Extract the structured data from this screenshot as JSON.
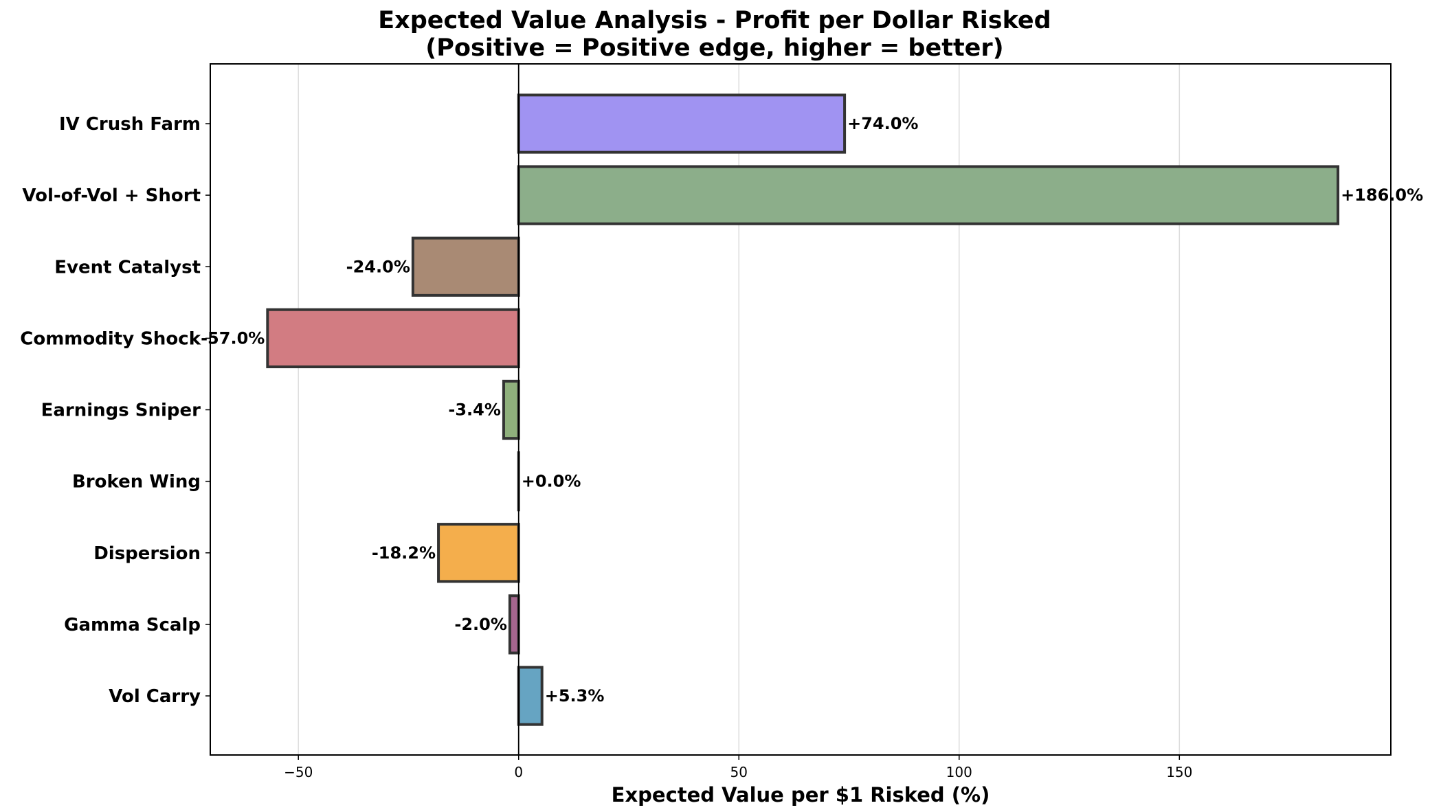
{
  "chart_data": {
    "type": "bar",
    "orientation": "horizontal",
    "title": "Expected Value Analysis - Profit per Dollar Risked",
    "subtitle": "(Positive = Positive edge, higher = better)",
    "xlabel": "Expected Value per $1 Risked (%)",
    "ylabel": "",
    "xlim": [
      -70,
      198
    ],
    "xticks": [
      -50,
      0,
      50,
      100,
      150
    ],
    "xtick_labels": [
      "−50",
      "0",
      "50",
      "100",
      "150"
    ],
    "grid": "x",
    "categories": [
      "IV Crush Farm",
      "Vol-of-Vol + Short",
      "Event Catalyst",
      "Commodity Shock",
      "Earnings Sniper",
      "Broken Wing",
      "Dispersion",
      "Gamma Scalp",
      "Vol Carry"
    ],
    "values": [
      74.0,
      186.0,
      -24.0,
      -57.0,
      -3.4,
      0.0,
      -18.2,
      -2.0,
      5.3
    ],
    "data_labels": [
      "+74.0%",
      "+186.0%",
      "-24.0%",
      "-57.0%",
      "-3.4%",
      "+0.0%",
      "-18.2%",
      "-2.0%",
      "+5.3%"
    ],
    "colors": [
      "#a093f2",
      "#8cae8a",
      "#a98a74",
      "#d27c82",
      "#8fb07c",
      "#3a3a3a",
      "#f4ae4c",
      "#a5668e",
      "#66a4c2"
    ]
  }
}
